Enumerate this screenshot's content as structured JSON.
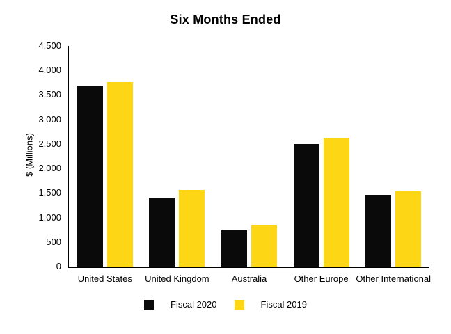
{
  "title": "Six Months Ended",
  "colors": {
    "background": "#ffffff",
    "axis": "#000000",
    "fiscal_2020": "#0a0a0a",
    "fiscal_2019": "#fdd716"
  },
  "chart_data": {
    "type": "bar",
    "title": "Six Months Ended",
    "xlabel": "",
    "ylabel": "$ (Millions)",
    "categories": [
      "United States",
      "United Kingdom",
      "Australia",
      "Other Europe",
      "Other International"
    ],
    "series": [
      {
        "name": "Fiscal 2020",
        "color": "#0a0a0a",
        "values": [
          3680,
          1400,
          740,
          2505,
          1465
        ]
      },
      {
        "name": "Fiscal 2019",
        "color": "#fdd716",
        "values": [
          3765,
          1560,
          845,
          2625,
          1535
        ]
      }
    ],
    "ylim": [
      0,
      4500
    ],
    "ytick_step": 500,
    "ytick_labels": [
      "0",
      "500",
      "1,000",
      "1,500",
      "2,000",
      "2,500",
      "3,000",
      "3,500",
      "4,000",
      "4,500"
    ],
    "grid": false,
    "legend_position": "bottom"
  }
}
